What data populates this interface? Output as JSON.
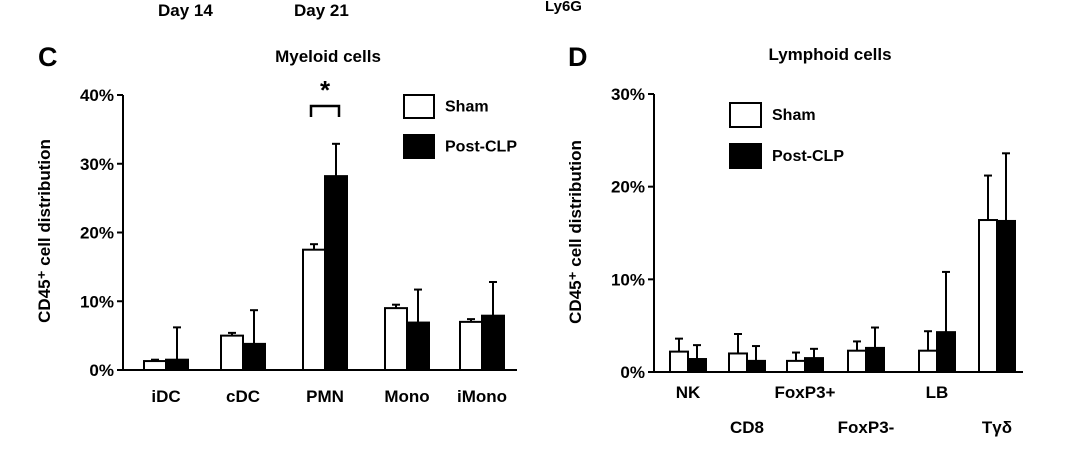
{
  "top_labels": [
    "Day 14",
    "Day 21",
    "Ly6G"
  ],
  "chart_data": [
    {
      "panel": "C",
      "type": "bar",
      "title": "Myeloid cells",
      "xlabel": "",
      "ylabel": "CD45⁺ cell distribution",
      "ylim": [
        0,
        40
      ],
      "yticks": [
        0,
        10,
        20,
        30,
        40
      ],
      "ytick_labels": [
        "0%",
        "10%",
        "20%",
        "30%",
        "40%"
      ],
      "categories": [
        "iDC",
        "cDC",
        "PMN",
        "Mono",
        "iMono"
      ],
      "series": [
        {
          "name": "Sham",
          "fill": "#ffffff",
          "values": [
            1.3,
            5.0,
            17.5,
            9.0,
            7.0
          ],
          "errors": [
            0.2,
            0.4,
            0.8,
            0.5,
            0.4
          ]
        },
        {
          "name": "Post-CLP",
          "fill": "#000000",
          "values": [
            1.5,
            3.8,
            28.2,
            6.9,
            7.9
          ],
          "errors": [
            4.7,
            4.9,
            4.7,
            4.8,
            4.9
          ]
        }
      ],
      "annotations": [
        {
          "text": "*",
          "category": "PMN"
        }
      ],
      "legend_position": "top-right"
    },
    {
      "panel": "D",
      "type": "bar",
      "title": "Lymphoid cells",
      "xlabel": "",
      "ylabel": "CD45⁺ cell distribution",
      "ylim": [
        0,
        30
      ],
      "yticks": [
        0,
        10,
        20,
        30
      ],
      "ytick_labels": [
        "0%",
        "10%",
        "20%",
        "30%"
      ],
      "categories": [
        "NK",
        "CD8",
        "FoxP3+",
        "FoxP3-",
        "LB",
        "Tγδ"
      ],
      "series": [
        {
          "name": "Sham",
          "fill": "#ffffff",
          "values": [
            2.2,
            2.0,
            1.2,
            2.3,
            2.3,
            16.4
          ],
          "errors": [
            1.4,
            2.1,
            0.9,
            1.0,
            2.1,
            4.8
          ]
        },
        {
          "name": "Post-CLP",
          "fill": "#000000",
          "values": [
            1.4,
            1.2,
            1.5,
            2.6,
            4.3,
            16.3
          ],
          "errors": [
            1.5,
            1.6,
            1.0,
            2.2,
            6.5,
            7.3
          ]
        }
      ],
      "legend_position": "top-left"
    }
  ]
}
